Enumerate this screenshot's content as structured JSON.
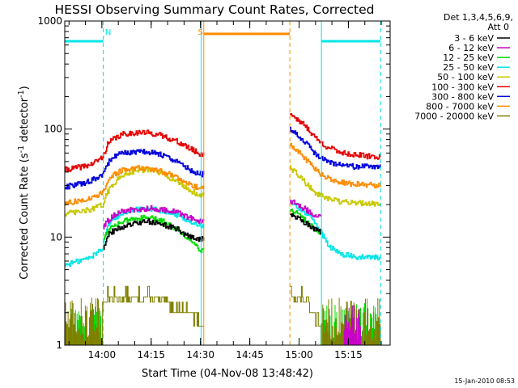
{
  "chart_data": {
    "type": "line",
    "title": "HESSI Observing Summary Count Rates, Corrected",
    "xlabel": "Start Time (04-Nov-08 13:48:42)",
    "ylabel_main": "Corrected Count Rate (s",
    "ylabel_sup1": "-1",
    "ylabel_mid": " detector",
    "ylabel_sup2": "-1",
    "ylabel_end": ")",
    "x_unit": "minutes after 13:48:42",
    "xlim": [
      0,
      99
    ],
    "ylim": [
      1,
      1000
    ],
    "yscale": "log",
    "xticks": [
      {
        "label": "14:00",
        "value": 11.3
      },
      {
        "label": "14:15",
        "value": 26.3
      },
      {
        "label": "14:30",
        "value": 41.3
      },
      {
        "label": "14:45",
        "value": 56.3
      },
      {
        "label": "15:00",
        "value": 71.3
      },
      {
        "label": "15:15",
        "value": 86.3
      }
    ],
    "yticks": [
      {
        "label": "1",
        "value": 1
      },
      {
        "label": "10",
        "value": 10
      },
      {
        "label": "100",
        "value": 100
      },
      {
        "label": "1000",
        "value": 1000
      }
    ],
    "legend": {
      "title_line1": "Det 1,3,4,5,6,9,",
      "title_line2": "Att 0",
      "placement": "right"
    },
    "gaps": [
      [
        42.3,
        68.5
      ]
    ],
    "series": [
      {
        "name": "3 - 6 keV",
        "color": "#000000",
        "x": [
          0,
          4,
          8,
          11.5,
          13,
          15,
          18,
          22,
          26,
          30,
          34,
          38,
          41.5,
          68.5,
          70,
          72,
          74,
          76,
          78,
          80,
          82,
          84,
          86,
          88,
          92,
          96
        ],
        "y": [
          null,
          null,
          null,
          7.5,
          10.5,
          11.5,
          12.5,
          13.5,
          14,
          13,
          12,
          10,
          9.5,
          16,
          15.5,
          14.5,
          13,
          12,
          11,
          null,
          null,
          null,
          null,
          null,
          null,
          null
        ]
      },
      {
        "name": "6 - 12 keV",
        "color": "#c800c8",
        "x": [
          0,
          4,
          8,
          11.5,
          13,
          15,
          18,
          22,
          26,
          30,
          34,
          38,
          41.5,
          68.5,
          70,
          72,
          74,
          76,
          78,
          80,
          82,
          84,
          86,
          88,
          92,
          96
        ],
        "y": [
          null,
          null,
          null,
          12,
          14,
          16,
          17.5,
          18,
          18.5,
          18,
          17,
          15,
          14,
          22,
          20.5,
          19,
          17.5,
          16,
          15,
          null,
          null,
          null,
          null,
          null,
          null,
          null
        ]
      },
      {
        "name": "12 - 25 keV",
        "color": "#00dc00",
        "x": [
          0,
          4,
          8,
          11.5,
          13,
          15,
          18,
          22,
          26,
          30,
          34,
          38,
          41.5,
          68.5,
          70,
          72,
          74,
          76,
          78,
          80,
          82,
          84,
          86,
          88,
          92,
          96
        ],
        "y": [
          null,
          null,
          null,
          9.5,
          11.5,
          13,
          14,
          15,
          15,
          14,
          12,
          9.5,
          7.5,
          18,
          17,
          15.5,
          13.5,
          12,
          10.5,
          null,
          null,
          null,
          null,
          null,
          null,
          null
        ]
      },
      {
        "name": "25 - 50 keV",
        "color": "#00e6e6",
        "x": [
          0,
          4,
          8,
          11.5,
          13,
          15,
          18,
          22,
          26,
          30,
          34,
          38,
          41.5,
          68.5,
          70,
          72,
          74,
          76,
          78,
          80,
          82,
          84,
          86,
          88,
          92,
          96
        ],
        "y": [
          5.5,
          6,
          6.5,
          8,
          13,
          15,
          17,
          18,
          18.5,
          17.5,
          16,
          14,
          12.5,
          21,
          19.5,
          18,
          16,
          14,
          11,
          8.5,
          7.5,
          7,
          6.8,
          6.5,
          6.5,
          6.5
        ]
      },
      {
        "name": "50 - 100 keV",
        "color": "#c8c800",
        "x": [
          0,
          4,
          8,
          11.5,
          13,
          15,
          18,
          22,
          26,
          30,
          34,
          38,
          41.5,
          68.5,
          70,
          72,
          74,
          76,
          78,
          80,
          82,
          84,
          86,
          88,
          92,
          96
        ],
        "y": [
          16.5,
          17,
          18,
          20,
          26,
          32,
          38,
          42,
          42,
          38,
          33,
          27,
          24,
          44,
          40,
          35,
          30,
          26,
          24,
          22.5,
          22,
          21,
          21,
          21,
          20.5,
          20.5
        ]
      },
      {
        "name": "100 - 300 keV",
        "color": "#e60000",
        "x": [
          0,
          4,
          8,
          11.5,
          13,
          15,
          18,
          22,
          26,
          30,
          34,
          38,
          41.5,
          68.5,
          70,
          72,
          74,
          76,
          78,
          80,
          82,
          84,
          86,
          88,
          92,
          96
        ],
        "y": [
          42,
          44,
          47,
          55,
          72,
          82,
          90,
          93,
          92,
          86,
          77,
          66,
          58,
          140,
          128,
          115,
          100,
          85,
          74,
          68,
          64,
          61,
          59,
          58,
          56,
          55
        ]
      },
      {
        "name": "300 - 800 keV",
        "color": "#0000dc",
        "x": [
          0,
          4,
          8,
          11.5,
          13,
          15,
          18,
          22,
          26,
          30,
          34,
          38,
          41.5,
          68.5,
          70,
          72,
          74,
          76,
          78,
          80,
          82,
          84,
          86,
          88,
          92,
          96
        ],
        "y": [
          29,
          31,
          33,
          38,
          48,
          56,
          60,
          62,
          61,
          57,
          50,
          42,
          38,
          100,
          92,
          82,
          70,
          60,
          54,
          50,
          48,
          47,
          46,
          45,
          45,
          45
        ]
      },
      {
        "name": "800 - 7000 keV",
        "color": "#ff8c00",
        "x": [
          0,
          4,
          8,
          11.5,
          13,
          15,
          18,
          22,
          26,
          30,
          34,
          38,
          41.5,
          68.5,
          70,
          72,
          74,
          76,
          78,
          80,
          82,
          84,
          86,
          88,
          92,
          96
        ],
        "y": [
          20.5,
          21.5,
          23,
          26,
          33,
          38,
          42,
          44,
          43,
          40,
          36,
          31,
          28,
          72,
          66,
          58,
          50,
          43,
          38,
          35,
          33,
          32,
          31.5,
          31,
          30.5,
          30
        ]
      },
      {
        "name": "7000 - 20000 keV",
        "color": "#808000",
        "x": [
          11.5,
          13,
          15,
          18,
          22,
          26,
          30,
          34,
          38,
          41.5,
          68.5,
          70,
          72,
          74,
          76,
          78
        ],
        "y": [
          2.3,
          2.8,
          2.8,
          2.8,
          2.8,
          2.8,
          2.5,
          2.2,
          2.0,
          1.5,
          3.5,
          2.8,
          2.8,
          2.5,
          2.0,
          1.5
        ]
      }
    ],
    "background_bursts": {
      "12 - 25 keV": {
        "color": "#00dc00",
        "ranges": [
          [
            0,
            11.5
          ],
          [
            78,
            96
          ]
        ]
      },
      "7000 - 20000 keV": {
        "color": "#808000",
        "ranges": [
          [
            0,
            11.5
          ],
          [
            78,
            96
          ]
        ]
      },
      "6 - 12 keV": {
        "color": "#c800c8",
        "ranges": [
          [
            85,
            90
          ]
        ]
      }
    },
    "annotations": [
      {
        "label": "N",
        "kind": "night",
        "color": "#00e6e6",
        "level": 650,
        "boundaries": [
          {
            "x": 11.7,
            "style": "dashed"
          },
          {
            "x": 41.5,
            "style": "solid"
          },
          {
            "x": 78.1,
            "style": "solid"
          },
          {
            "x": 96.1,
            "style": "dashed"
          }
        ],
        "bars": [
          [
            0,
            11.7
          ],
          [
            78.1,
            96.1
          ]
        ],
        "label_x": 13.2
      },
      {
        "label": "S",
        "kind": "saa",
        "color": "#ff8c00",
        "level": 760,
        "boundaries": [
          {
            "x": 42.3,
            "style": "solid"
          },
          {
            "x": 68.5,
            "style": "dashed"
          }
        ],
        "bars": [
          [
            42.3,
            68.5
          ]
        ],
        "label_x": 41.3
      }
    ]
  },
  "footer": {
    "timestamp": "15-Jan-2010 08:53"
  }
}
